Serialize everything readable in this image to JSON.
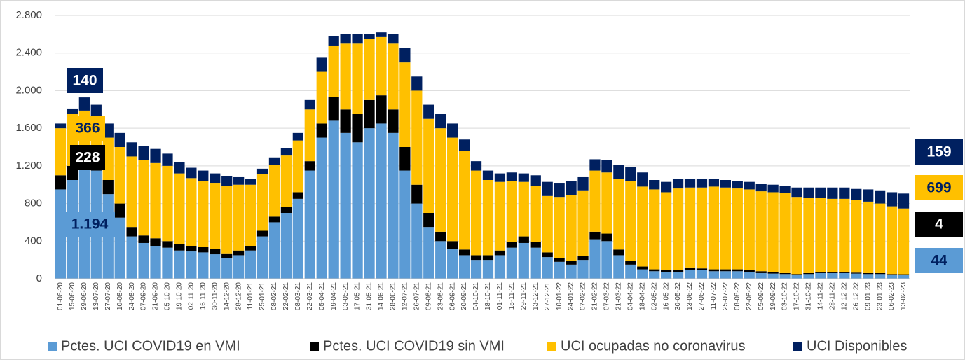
{
  "chart_data": {
    "type": "stacked-bar",
    "categories": [
      "01-06-20",
      "15-06-20",
      "29-06-20",
      "13-07-20",
      "27-07-20",
      "10-08-20",
      "24-08-20",
      "07-09-20",
      "21-09-20",
      "05-10-20",
      "19-10-20",
      "02-11-20",
      "16-11-20",
      "30-11-20",
      "14-12-20",
      "28-12-20",
      "11-01-21",
      "25-01-21",
      "08-02-21",
      "22-02-21",
      "08-03-21",
      "22-03-21",
      "05-04-21",
      "19-04-21",
      "03-05-21",
      "17-05-21",
      "31-05-21",
      "14-06-21",
      "28-06-21",
      "12-07-21",
      "26-07-21",
      "09-08-21",
      "23-08-21",
      "06-09-21",
      "20-09-21",
      "04-10-21",
      "18-10-21",
      "01-11-21",
      "15-11-21",
      "29-11-21",
      "13-12-21",
      "27-12-21",
      "10-01-22",
      "24-01-22",
      "07-02-22",
      "21-02-22",
      "07-03-22",
      "21-03-22",
      "04-04-22",
      "18-04-22",
      "02-05-22",
      "16-05-22",
      "30-05-22",
      "13-06-22",
      "27-06-22",
      "11-07-22",
      "25-07-22",
      "08-08-22",
      "22-08-22",
      "05-09-22",
      "19-09-22",
      "03-10-22",
      "17-10-22",
      "31-10-22",
      "14-11-22",
      "28-11-22",
      "12-12-22",
      "26-12-22",
      "09-01-23",
      "23-01-23",
      "06-02-23",
      "13-02-23"
    ],
    "series": [
      {
        "name": "Pctes. UCI COVID19 en VMI",
        "color": "#5b9bd5",
        "values": [
          950,
          1050,
          1194,
          1150,
          900,
          650,
          450,
          380,
          350,
          330,
          300,
          290,
          280,
          260,
          220,
          250,
          300,
          450,
          600,
          700,
          850,
          1150,
          1500,
          1680,
          1550,
          1450,
          1600,
          1650,
          1550,
          1150,
          800,
          550,
          400,
          320,
          250,
          200,
          200,
          250,
          330,
          380,
          330,
          230,
          180,
          150,
          200,
          420,
          400,
          250,
          150,
          100,
          80,
          70,
          70,
          90,
          90,
          80,
          80,
          80,
          70,
          60,
          55,
          50,
          40,
          50,
          60,
          60,
          60,
          55,
          50,
          50,
          45,
          44
        ],
        "value_labels": [
          null,
          null,
          "1.194",
          null,
          null,
          null,
          null,
          null,
          null,
          null,
          null,
          null,
          null,
          null,
          null,
          null,
          null,
          null,
          null,
          null,
          null,
          null,
          null,
          null,
          null,
          null,
          null,
          null,
          null,
          null,
          null,
          null,
          null,
          null,
          null,
          null,
          null,
          null,
          null,
          null,
          null,
          null,
          null,
          null,
          null,
          null,
          null,
          null,
          null,
          null,
          null,
          null,
          null,
          null,
          null,
          null,
          null,
          null,
          null,
          null,
          null,
          null,
          null,
          null,
          null,
          null,
          null,
          null,
          null,
          null,
          null,
          "44"
        ]
      },
      {
        "name": "Pctes. UCI COVID19 sin VMI",
        "color": "#000000",
        "values": [
          150,
          150,
          228,
          200,
          150,
          150,
          100,
          80,
          80,
          70,
          70,
          60,
          60,
          60,
          50,
          50,
          50,
          60,
          60,
          60,
          70,
          100,
          150,
          250,
          250,
          300,
          300,
          300,
          250,
          250,
          200,
          150,
          100,
          80,
          60,
          50,
          50,
          50,
          60,
          70,
          60,
          50,
          40,
          40,
          40,
          80,
          80,
          60,
          40,
          30,
          20,
          20,
          20,
          30,
          20,
          20,
          20,
          20,
          20,
          20,
          15,
          10,
          10,
          10,
          10,
          10,
          10,
          10,
          10,
          10,
          5,
          4
        ],
        "value_labels": [
          null,
          null,
          "228",
          null,
          null,
          null,
          null,
          null,
          null,
          null,
          null,
          null,
          null,
          null,
          null,
          null,
          null,
          null,
          null,
          null,
          null,
          null,
          null,
          null,
          null,
          null,
          null,
          null,
          null,
          null,
          null,
          null,
          null,
          null,
          null,
          null,
          null,
          null,
          null,
          null,
          null,
          null,
          null,
          null,
          null,
          null,
          null,
          null,
          null,
          null,
          null,
          null,
          null,
          null,
          null,
          null,
          null,
          null,
          null,
          null,
          null,
          null,
          null,
          null,
          null,
          null,
          null,
          null,
          null,
          null,
          null,
          "4"
        ]
      },
      {
        "name": "UCI ocupadas no coronavirus",
        "color": "#ffc000",
        "values": [
          500,
          550,
          366,
          350,
          450,
          600,
          750,
          800,
          800,
          800,
          750,
          720,
          700,
          700,
          720,
          700,
          650,
          600,
          550,
          550,
          550,
          550,
          550,
          550,
          700,
          750,
          650,
          620,
          700,
          900,
          1000,
          1000,
          1100,
          1100,
          1050,
          900,
          800,
          730,
          650,
          580,
          600,
          600,
          650,
          700,
          700,
          650,
          650,
          750,
          850,
          850,
          850,
          830,
          870,
          850,
          860,
          880,
          870,
          860,
          860,
          850,
          850,
          850,
          820,
          800,
          790,
          780,
          780,
          770,
          760,
          740,
          720,
          699
        ],
        "value_labels": [
          null,
          null,
          "366",
          null,
          null,
          null,
          null,
          null,
          null,
          null,
          null,
          null,
          null,
          null,
          null,
          null,
          null,
          null,
          null,
          null,
          null,
          null,
          null,
          null,
          null,
          null,
          null,
          null,
          null,
          null,
          null,
          null,
          null,
          null,
          null,
          null,
          null,
          null,
          null,
          null,
          null,
          null,
          null,
          null,
          null,
          null,
          null,
          null,
          null,
          null,
          null,
          null,
          null,
          null,
          null,
          null,
          null,
          null,
          null,
          null,
          null,
          null,
          null,
          null,
          null,
          null,
          null,
          null,
          null,
          null,
          null,
          "699"
        ]
      },
      {
        "name": "UCI Disponibles",
        "color": "#002060",
        "values": [
          50,
          60,
          140,
          150,
          150,
          150,
          150,
          150,
          150,
          130,
          120,
          110,
          110,
          100,
          100,
          80,
          60,
          60,
          80,
          80,
          80,
          100,
          150,
          100,
          100,
          100,
          50,
          50,
          100,
          150,
          150,
          150,
          150,
          150,
          120,
          100,
          100,
          90,
          90,
          90,
          110,
          150,
          150,
          150,
          140,
          120,
          130,
          150,
          150,
          150,
          100,
          110,
          100,
          90,
          90,
          80,
          80,
          80,
          80,
          80,
          80,
          80,
          100,
          110,
          110,
          120,
          120,
          120,
          130,
          140,
          150,
          159
        ],
        "value_labels": [
          null,
          null,
          "140",
          null,
          null,
          null,
          null,
          null,
          null,
          null,
          null,
          null,
          null,
          null,
          null,
          null,
          null,
          null,
          null,
          null,
          null,
          null,
          null,
          null,
          null,
          null,
          null,
          null,
          null,
          null,
          null,
          null,
          null,
          null,
          null,
          null,
          null,
          null,
          null,
          null,
          null,
          null,
          null,
          null,
          null,
          null,
          null,
          null,
          null,
          null,
          null,
          null,
          null,
          null,
          null,
          null,
          null,
          null,
          null,
          null,
          null,
          null,
          null,
          null,
          null,
          null,
          null,
          null,
          null,
          null,
          null,
          "159"
        ]
      }
    ],
    "ylim": [
      0,
      2800
    ],
    "yticks": [
      0,
      400,
      800,
      {
        "value": 1200,
        "label": "1.200"
      },
      {
        "value": 1600,
        "label": "1.600"
      },
      {
        "value": 2000,
        "label": "2.000"
      },
      {
        "value": 2400,
        "label": "2.400"
      },
      {
        "value": 2800,
        "label": "2.800"
      }
    ],
    "grid": true
  }
}
